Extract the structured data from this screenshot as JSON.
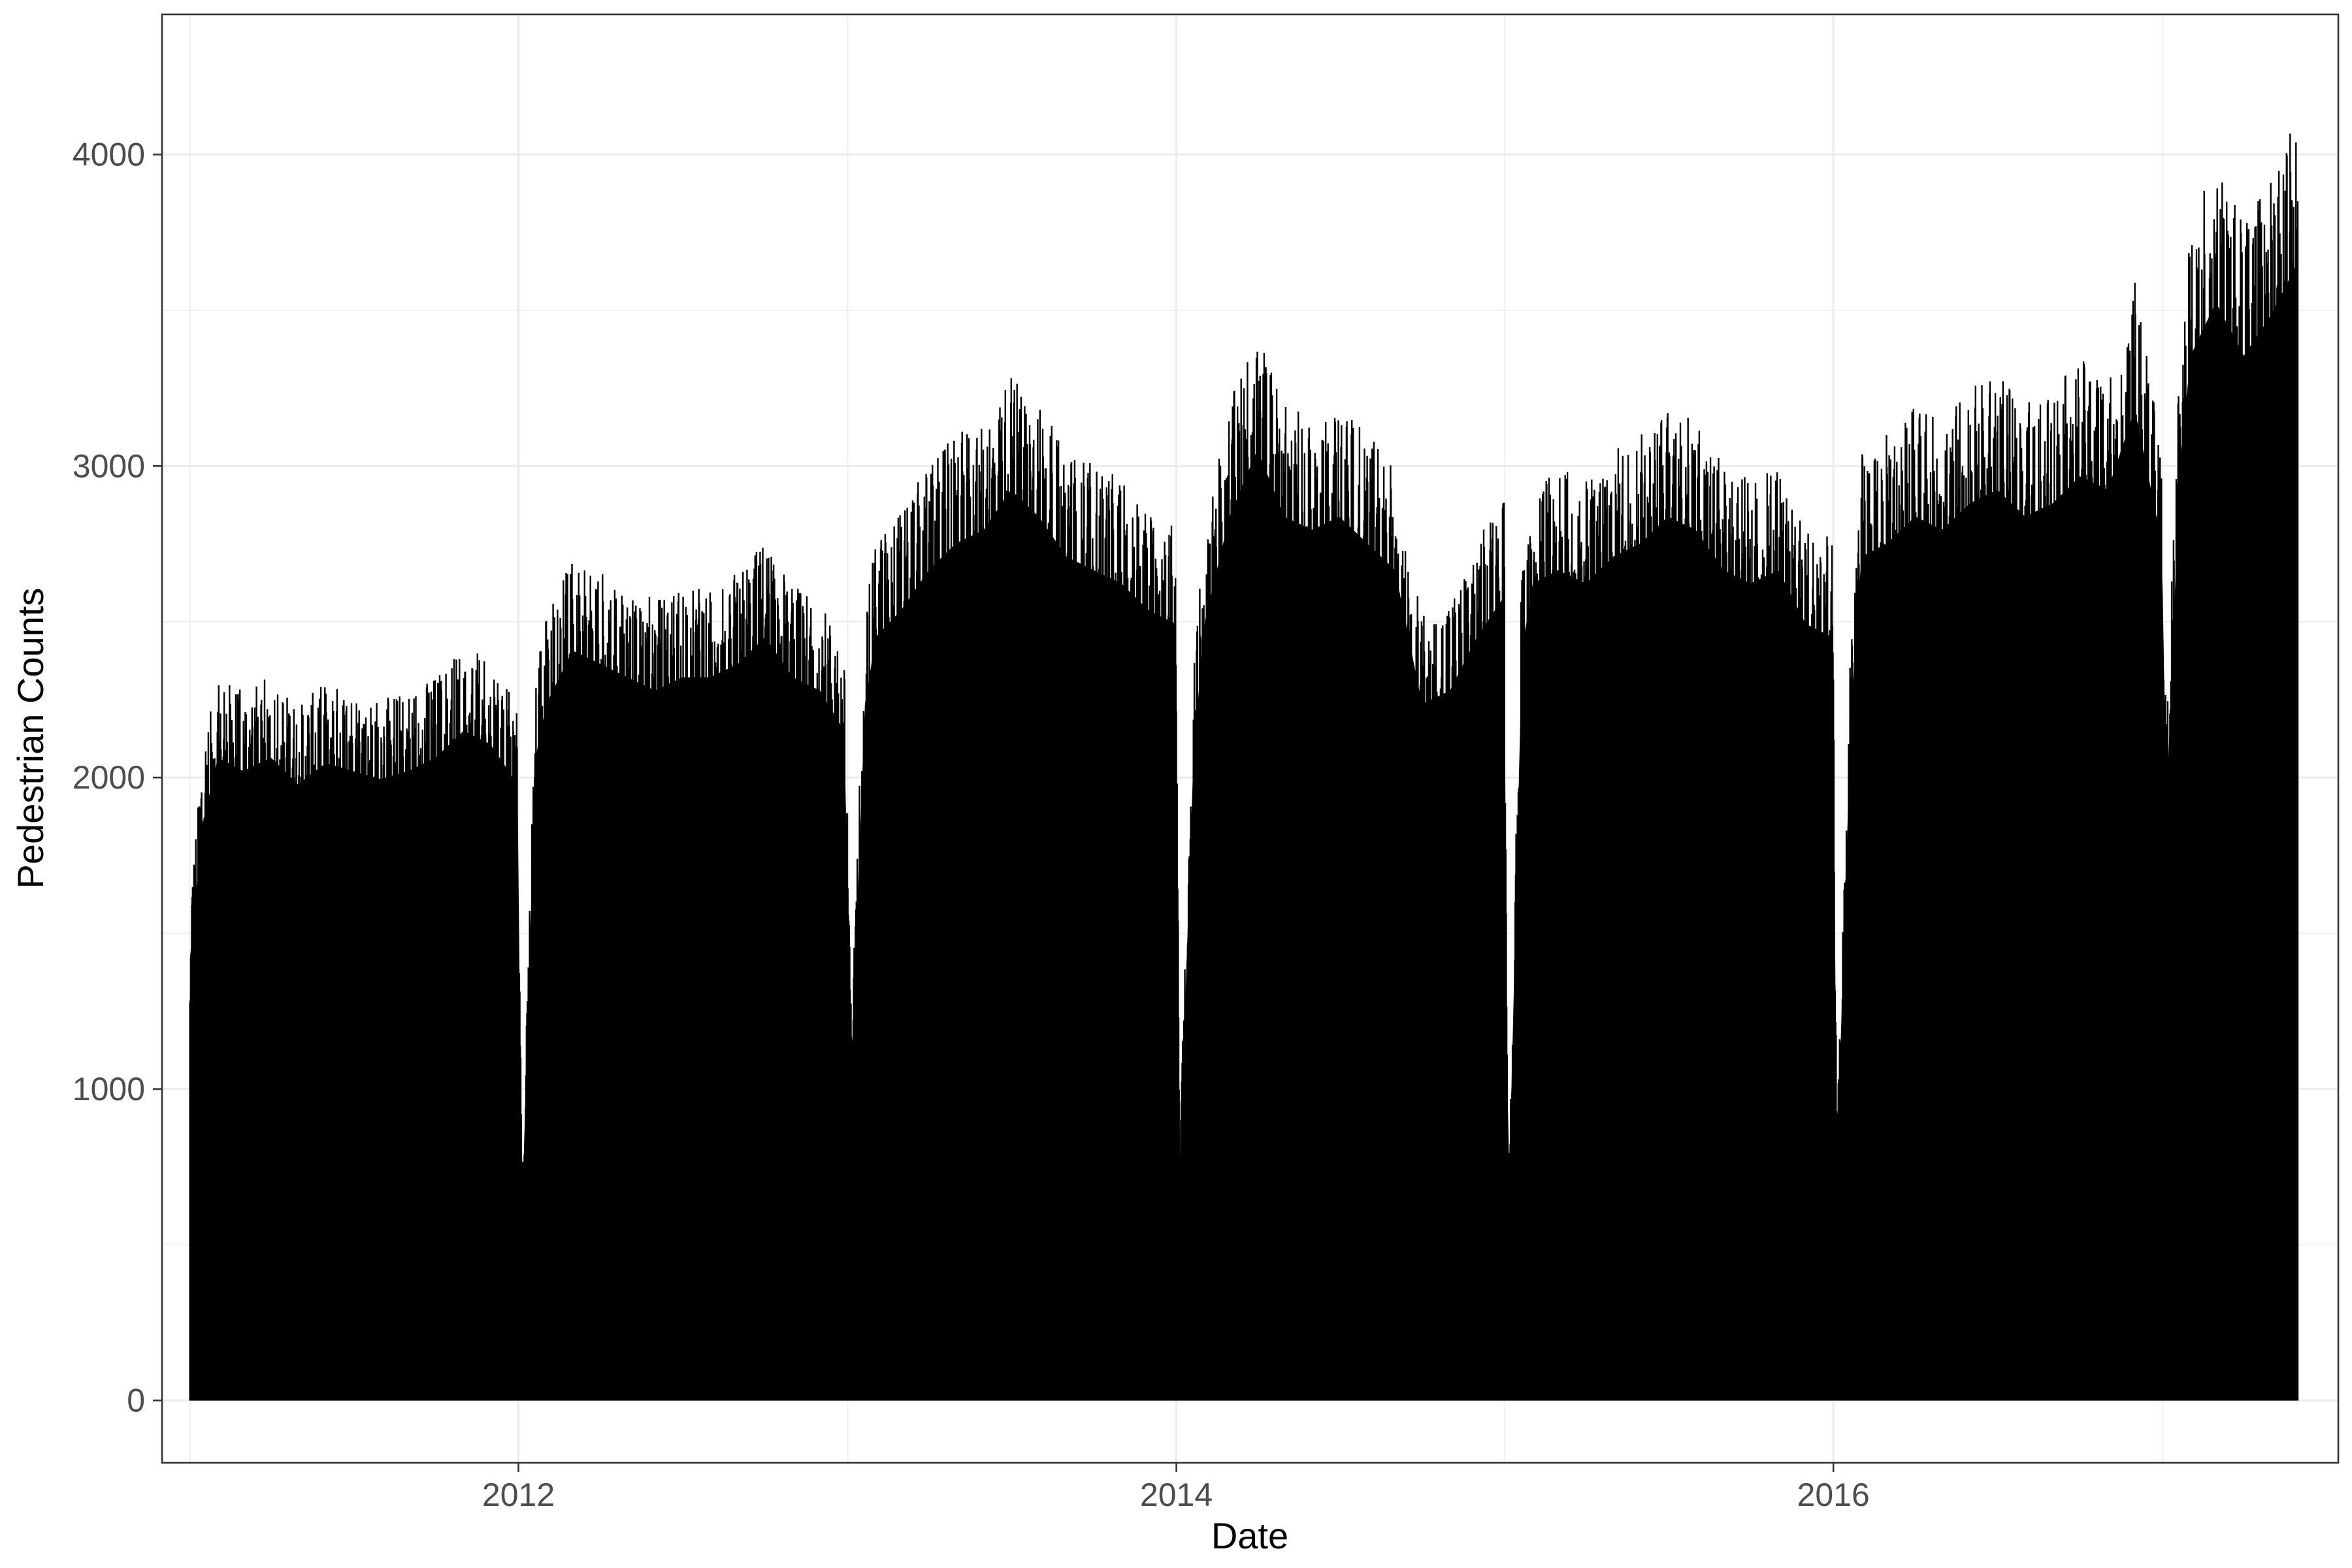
{
  "chart_data": {
    "type": "line",
    "title": "",
    "xlabel": "Date",
    "ylabel": "Pedestrian Counts",
    "x_axis_type": "date",
    "xlim": [
      "2010-12-01",
      "2017-07-15"
    ],
    "ylim": [
      -200,
      4450
    ],
    "x_ticks": [
      {
        "value": "2012-01-01",
        "label": "2012"
      },
      {
        "value": "2014-01-01",
        "label": "2014"
      },
      {
        "value": "2016-01-01",
        "label": "2016"
      }
    ],
    "x_minor_ticks": [
      "2011-01-01",
      "2013-01-01",
      "2015-01-01",
      "2017-01-01"
    ],
    "y_ticks": [
      0,
      1000,
      2000,
      3000,
      4000
    ],
    "y_tick_labels": [
      "0",
      "1000",
      "2000",
      "3000",
      "4000"
    ],
    "y_minor_ticks": [
      500,
      1500,
      2500,
      3500
    ],
    "grid": true,
    "legend": "none",
    "line_color": "#000000",
    "series": [
      {
        "x": [
          "2011-01-01",
          "2011-01-15",
          "2011-02-01",
          "2011-03-01",
          "2011-04-01",
          "2011-05-01",
          "2011-06-01",
          "2011-07-01",
          "2011-08-01",
          "2011-09-01",
          "2011-10-01",
          "2011-11-01",
          "2011-12-01",
          "2011-12-31",
          "2012-01-05",
          "2012-01-20",
          "2012-02-01",
          "2012-03-01",
          "2012-04-01",
          "2012-05-01",
          "2012-06-01",
          "2012-07-01",
          "2012-08-01",
          "2012-09-01",
          "2012-10-01",
          "2012-11-01",
          "2012-12-01",
          "2012-12-28",
          "2013-01-05",
          "2013-01-20",
          "2013-02-01",
          "2013-03-01",
          "2013-04-01",
          "2013-05-01",
          "2013-06-01",
          "2013-07-01",
          "2013-08-01",
          "2013-09-01",
          "2013-10-01",
          "2013-11-01",
          "2013-12-01",
          "2013-12-31",
          "2014-01-05",
          "2014-01-20",
          "2014-02-01",
          "2014-03-01",
          "2014-04-01",
          "2014-05-01",
          "2014-06-01",
          "2014-07-01",
          "2014-08-01",
          "2014-09-01",
          "2014-10-01",
          "2014-11-01",
          "2014-12-01",
          "2014-12-31",
          "2015-01-05",
          "2015-01-20",
          "2015-02-01",
          "2015-03-01",
          "2015-04-01",
          "2015-05-01",
          "2015-06-01",
          "2015-07-01",
          "2015-08-01",
          "2015-09-01",
          "2015-10-01",
          "2015-11-01",
          "2015-12-01",
          "2015-12-31",
          "2016-01-05",
          "2016-01-20",
          "2016-02-01",
          "2016-03-01",
          "2016-04-01",
          "2016-05-01",
          "2016-06-01",
          "2016-07-01",
          "2016-08-01",
          "2016-09-01",
          "2016-10-01",
          "2016-11-01",
          "2016-12-01",
          "2016-12-31",
          "2017-01-05",
          "2017-01-20",
          "2017-02-01",
          "2017-03-01",
          "2017-04-01",
          "2017-05-01",
          "2017-05-31"
        ],
        "y_max": [
          1650,
          2150,
          2400,
          2350,
          2400,
          2300,
          2380,
          2350,
          2320,
          2350,
          2400,
          2500,
          2450,
          2300,
          700,
          2400,
          2600,
          2800,
          2750,
          2700,
          2650,
          2700,
          2700,
          2750,
          2850,
          2700,
          2650,
          2500,
          1250,
          2600,
          2850,
          2950,
          3100,
          3200,
          3250,
          3400,
          3300,
          3150,
          3100,
          3050,
          2950,
          2900,
          900,
          2400,
          2900,
          3300,
          3550,
          3300,
          3250,
          3300,
          3200,
          3100,
          2600,
          2650,
          2850,
          3000,
          700,
          2800,
          3050,
          3100,
          3050,
          3150,
          3200,
          3300,
          3250,
          3100,
          3050,
          3100,
          2900,
          2850,
          900,
          2500,
          3150,
          3200,
          3300,
          3250,
          3350,
          3400,
          3300,
          3350,
          3450,
          3400,
          3700,
          3200,
          2200,
          3500,
          3900,
          4100,
          3900,
          4050,
          4250
        ]
      }
    ]
  }
}
